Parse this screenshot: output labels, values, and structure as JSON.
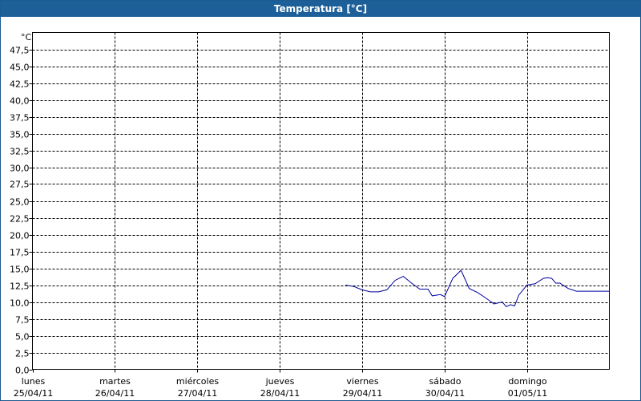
{
  "window": {
    "title": "Temperatura [°C]"
  },
  "chart_data": {
    "type": "line",
    "title": "Temperatura [°C]",
    "ylabel": "°C",
    "xlabel": "",
    "ylim": [
      0,
      50
    ],
    "y_ticks": [
      "0,0",
      "2,5",
      "5,0",
      "7,5",
      "10,0",
      "12,5",
      "15,0",
      "17,5",
      "20,0",
      "22,5",
      "25,0",
      "27,5",
      "30,0",
      "32,5",
      "35,0",
      "37,5",
      "40,0",
      "42,5",
      "45,0",
      "47,5"
    ],
    "y_tick_values": [
      0,
      2.5,
      5,
      7.5,
      10,
      12.5,
      15,
      17.5,
      20,
      22.5,
      25,
      27.5,
      30,
      32.5,
      35,
      37.5,
      40,
      42.5,
      45,
      47.5
    ],
    "x_ticks": [
      {
        "day": "lunes",
        "date": "25/04/11"
      },
      {
        "day": "martes",
        "date": "26/04/11"
      },
      {
        "day": "miércoles",
        "date": "27/04/11"
      },
      {
        "day": "jueves",
        "date": "28/04/11"
      },
      {
        "day": "viernes",
        "date": "29/04/11"
      },
      {
        "day": "sábado",
        "date": "30/04/11"
      },
      {
        "day": "domingo",
        "date": "01/05/11"
      }
    ],
    "x_range_days": 7,
    "grid": true,
    "series": [
      {
        "color": "#0000a0",
        "x_days": [
          3.8,
          3.9,
          4.0,
          4.1,
          4.2,
          4.3,
          4.4,
          4.45,
          4.5,
          4.6,
          4.7,
          4.8,
          4.85,
          4.95,
          5.0,
          5.1,
          5.2,
          5.3,
          5.4,
          5.5,
          5.6,
          5.7,
          5.75,
          5.8,
          5.85,
          5.9,
          6.0,
          6.1,
          6.2,
          6.25,
          6.3,
          6.35,
          6.4,
          6.5,
          6.6,
          6.7,
          6.8,
          6.9,
          7.0
        ],
        "values": [
          12.5,
          12.3,
          11.8,
          11.5,
          11.5,
          11.8,
          13.2,
          13.5,
          13.8,
          12.8,
          11.9,
          11.9,
          10.9,
          11.1,
          10.8,
          13.5,
          14.7,
          12.0,
          11.4,
          10.6,
          9.7,
          10.0,
          9.3,
          9.6,
          9.4,
          11.0,
          12.5,
          12.7,
          13.5,
          13.6,
          13.5,
          12.8,
          12.8,
          12.0,
          11.6,
          11.6,
          11.6,
          11.6,
          11.6
        ]
      }
    ]
  }
}
